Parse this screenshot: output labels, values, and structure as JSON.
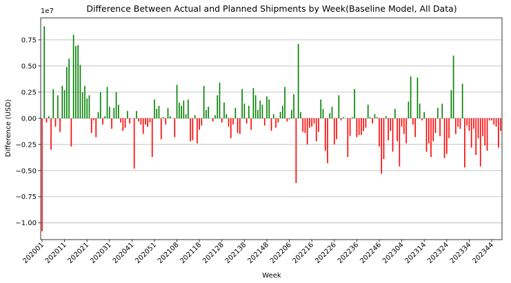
{
  "chart_data": {
    "type": "bar",
    "title": "Difference Between Actual and Planned Shipments by Week(Baseline Model, All Data)",
    "xlabel": "Week",
    "ylabel": "Difference (USD)",
    "y_exponent_label": "1e7",
    "y_scale_note": "values in units of 1e7 USD",
    "ylim": [
      -1.16,
      0.96
    ],
    "grid": "horizontal",
    "colors": {
      "positive": "#008000",
      "negative": "#ff0000"
    },
    "x_tick_labels": [
      "202001",
      "202011",
      "202021",
      "202031",
      "202041",
      "202051",
      "202108",
      "202118",
      "202128",
      "202138",
      "202148",
      "202206",
      "202216",
      "202226",
      "202236",
      "202246",
      "202304",
      "202314",
      "202324",
      "202334",
      "202344"
    ],
    "x_tick_indices": [
      0,
      10,
      20,
      30,
      40,
      50,
      60,
      70,
      80,
      90,
      100,
      110,
      120,
      130,
      140,
      150,
      160,
      170,
      180,
      190,
      200
    ],
    "y_ticks": [
      -1.0,
      -0.75,
      -0.5,
      -0.25,
      0.0,
      0.25,
      0.5,
      0.75
    ],
    "y_tick_labels": [
      "−1.00",
      "−0.75",
      "−0.50",
      "−0.25",
      "0.00",
      "0.25",
      "0.50",
      "0.75"
    ],
    "values": [
      -1.08,
      0.88,
      -0.04,
      0.02,
      -0.3,
      0.28,
      -0.08,
      0.22,
      -0.13,
      0.31,
      0.27,
      0.49,
      0.57,
      -0.27,
      0.8,
      0.69,
      0.7,
      0.51,
      0.25,
      0.31,
      0.19,
      0.22,
      -0.14,
      -0.02,
      -0.18,
      0.06,
      0.25,
      -0.06,
      0.02,
      0.3,
      0.11,
      -0.1,
      0.1,
      0.25,
      0.13,
      -0.04,
      -0.12,
      -0.09,
      0.07,
      -0.05,
      0.0,
      -0.48,
      0.07,
      -0.03,
      -0.06,
      -0.15,
      -0.06,
      -0.08,
      -0.04,
      -0.37,
      0.18,
      0.09,
      0.12,
      -0.2,
      0.01,
      -0.06,
      0.1,
      0.02,
      0.0,
      -0.18,
      0.32,
      0.15,
      0.12,
      0.17,
      0.04,
      0.18,
      -0.22,
      -0.21,
      0.03,
      -0.24,
      -0.11,
      -0.07,
      0.31,
      0.08,
      0.11,
      0.0,
      -0.03,
      0.03,
      0.22,
      0.34,
      -0.04,
      0.15,
      0.04,
      -0.08,
      -0.19,
      -0.06,
      0.1,
      -0.14,
      -0.15,
      0.28,
      0.14,
      -0.05,
      0.12,
      -0.11,
      0.29,
      0.22,
      0.08,
      0.17,
      0.13,
      -0.07,
      0.21,
      0.18,
      -0.12,
      0.04,
      -0.09,
      -0.04,
      0.06,
      0.12,
      0.3,
      -0.03,
      -0.01,
      0.08,
      0.23,
      -0.62,
      0.71,
      0.06,
      -0.13,
      -0.14,
      -0.25,
      -0.09,
      -0.08,
      -0.05,
      -0.22,
      -0.13,
      0.18,
      0.09,
      -0.31,
      -0.43,
      0.05,
      0.11,
      -0.25,
      -0.2,
      0.22,
      -0.02,
      0.01,
      0.0,
      -0.37,
      -0.17,
      0.01,
      0.28,
      -0.18,
      -0.16,
      -0.16,
      -0.12,
      -0.09,
      0.13,
      0.01,
      -0.05,
      0.04,
      0.01,
      -0.27,
      -0.53,
      -0.39,
      0.02,
      -0.21,
      -0.12,
      -0.32,
      0.09,
      -0.22,
      -0.46,
      -0.08,
      -0.15,
      -0.24,
      0.16,
      0.4,
      -0.06,
      -0.18,
      0.39,
      0.14,
      -0.02,
      0.06,
      -0.32,
      -0.24,
      -0.37,
      -0.22,
      -0.14,
      0.1,
      -0.17,
      0.14,
      -0.38,
      -0.34,
      -0.19,
      0.27,
      0.6,
      -0.15,
      -0.08,
      -0.1,
      0.33,
      -0.47,
      -0.07,
      -0.12,
      -0.28,
      -0.1,
      -0.35,
      -0.19,
      -0.46,
      -0.17,
      -0.26,
      -0.31,
      -0.02,
      -0.02,
      -0.06,
      -0.08,
      -0.28,
      -0.12
    ]
  }
}
